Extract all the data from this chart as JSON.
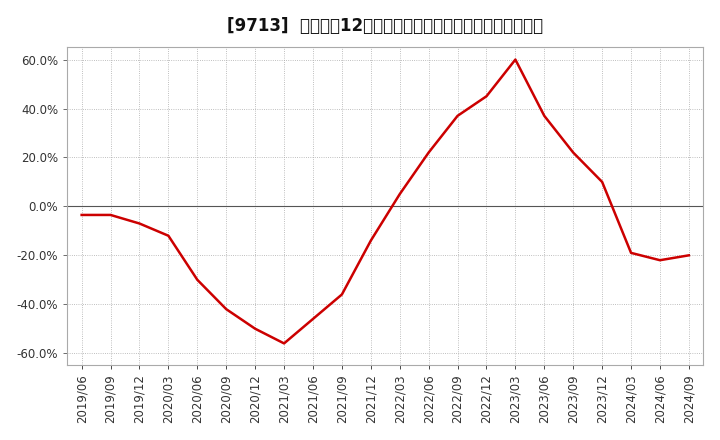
{
  "title": "[9713]  売上高の12か月移動合計の対前年同期増減率の推移",
  "dates": [
    "2019/06",
    "2019/09",
    "2019/12",
    "2020/03",
    "2020/06",
    "2020/09",
    "2020/12",
    "2021/03",
    "2021/06",
    "2021/09",
    "2021/12",
    "2022/03",
    "2022/06",
    "2022/09",
    "2022/12",
    "2023/03",
    "2023/06",
    "2023/09",
    "2023/12",
    "2024/03",
    "2024/06",
    "2024/09"
  ],
  "values": [
    -3.5,
    -3.5,
    -7.0,
    -12.0,
    -30.0,
    -42.0,
    -50.0,
    -56.0,
    -46.0,
    -36.0,
    -14.0,
    5.0,
    22.0,
    37.0,
    45.0,
    60.0,
    37.0,
    22.0,
    10.0,
    -19.0,
    -22.0,
    -20.0
  ],
  "line_color": "#cc0000",
  "background_color": "#ffffff",
  "plot_bg_color": "#ffffff",
  "grid_color": "#aaaaaa",
  "zero_line_color": "#555555",
  "ylim": [
    -65,
    65
  ],
  "yticks": [
    -60,
    -40,
    -20,
    0,
    20,
    40,
    60
  ],
  "title_fontsize": 12,
  "tick_fontsize": 8.5,
  "line_width": 1.8
}
